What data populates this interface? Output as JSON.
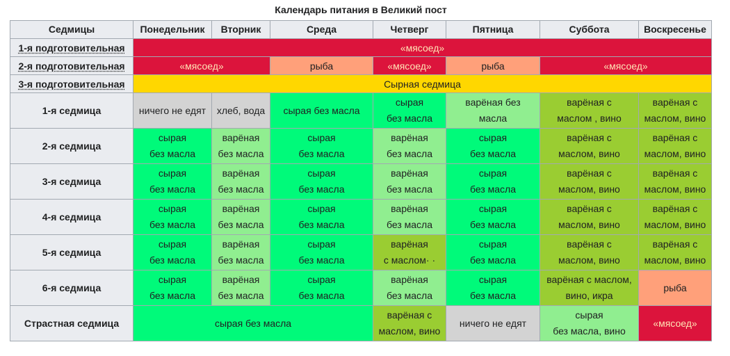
{
  "title": "Календарь питания в Великий пост",
  "header": {
    "corner": "Седмицы",
    "days": [
      "Понедельник",
      "Вторник",
      "Среда",
      "Четверг",
      "Пятница",
      "Суббота",
      "Воскресенье"
    ]
  },
  "rows": [
    {
      "label": "1-я подготовительная",
      "cells": [
        "«мясоед»"
      ]
    },
    {
      "label": "2-я подготовительная",
      "cells": [
        "«мясоед»",
        "рыба",
        "«мясоед»",
        "рыба",
        "«мясоед»"
      ]
    },
    {
      "label": "3-я подготовительная",
      "cells": [
        "Сырная седмица"
      ]
    },
    {
      "label": "1-я седмица",
      "cells": [
        "ничего не едят",
        "хлеб, вода",
        "сырая без масла",
        "сырая\nбез масла",
        "варёная без\nмасла",
        "варёная с\nмаслом     , вино",
        "варёная с\nмаслом, вино"
      ]
    },
    {
      "label": "2-я седмица",
      "cells": [
        "сырая\nбез масла",
        "варёная\nбез масла",
        "сырая\nбез масла",
        "варёная\nбез масла",
        "сырая\nбез масла",
        "варёная с\nмаслом, вино",
        "варёная с\nмаслом, вино"
      ]
    },
    {
      "label": "3-я седмица",
      "cells": [
        "сырая\nбез масла",
        "варёная\nбез масла",
        "сырая\nбез масла",
        "варёная\nбез масла",
        "сырая\nбез масла",
        "варёная с\nмаслом, вино",
        "варёная с\nмаслом, вино"
      ]
    },
    {
      "label": "4-я седмица",
      "cells": [
        "сырая\nбез масла",
        "варёная\nбез масла",
        "сырая\nбез масла",
        "варёная\nбез масла",
        "сырая\nбез масла",
        "варёная с\nмаслом, вино",
        "варёная с\nмаслом, вино"
      ]
    },
    {
      "label": "5-я седмица",
      "cells": [
        "сырая\nбез масла",
        "варёная\nбез масла",
        "сырая\nбез масла",
        "варёная\nс маслом·   ·",
        "сырая\nбез масла",
        "варёная с\nмаслом, вино",
        "варёная с\nмаслом, вино"
      ]
    },
    {
      "label": "6-я седмица",
      "cells": [
        "сырая\nбез масла",
        "варёная\nбез масла",
        "сырая\nбез масла",
        "варёная\nбез масла",
        "сырая\nбез масла",
        "варёная с маслом,\nвино, икра",
        "рыба"
      ]
    },
    {
      "label": "Страстная седмица",
      "cells": [
        "сырая без масла",
        "варёная с\nмаслом, вино",
        "ничего не едят",
        "сырая\nбез масла, вино",
        "«мясоед»"
      ]
    }
  ],
  "legend_colors": {
    "meat": "#dc143c",
    "fish": "#ffa07a",
    "cheese": "#ffd700",
    "nothing": "#d3d3d3",
    "raw": "#00fa7a",
    "cooked": "#90ee90",
    "oil_wine": "#9acd32"
  }
}
